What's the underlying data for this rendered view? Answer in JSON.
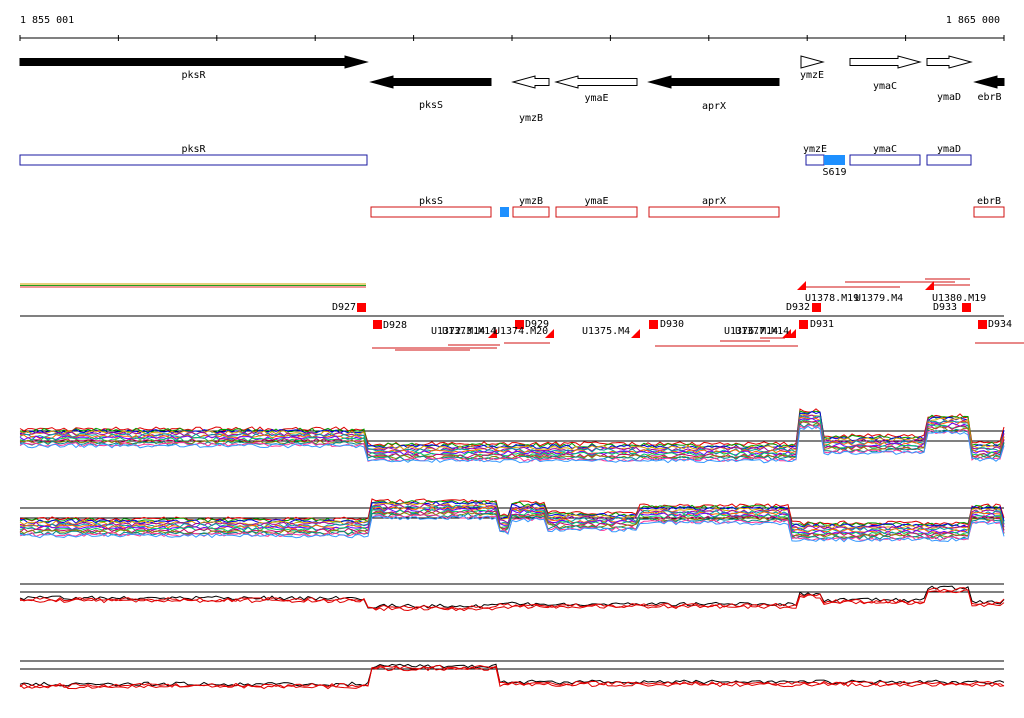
{
  "coords": {
    "start": "1 855 001",
    "end": "1 865 000"
  },
  "genes": [
    {
      "name": "pksR",
      "strand": "+",
      "fill": "black",
      "x1": 20,
      "x2": 367,
      "lab": "pksR"
    },
    {
      "name": "pksS",
      "strand": "-",
      "fill": "black",
      "x1": 371,
      "x2": 491,
      "lab": "pksS"
    },
    {
      "name": "ymzB",
      "strand": "-",
      "fill": "white",
      "x1": 513,
      "x2": 549,
      "lab": "ymzB"
    },
    {
      "name": "ymaE",
      "strand": "-",
      "fill": "white",
      "x1": 556,
      "x2": 637,
      "lab": "ymaE"
    },
    {
      "name": "aprX",
      "strand": "-",
      "fill": "black",
      "x1": 649,
      "x2": 779,
      "lab": "aprX"
    },
    {
      "name": "ymzE",
      "strand": "+",
      "fill": "white",
      "x1": 801,
      "x2": 823,
      "lab": "ymzE"
    },
    {
      "name": "ymaC",
      "strand": "+",
      "fill": "white",
      "x1": 850,
      "x2": 920,
      "lab": "ymaC"
    },
    {
      "name": "ymaD",
      "strand": "+",
      "fill": "white",
      "x1": 927,
      "x2": 971,
      "lab": "ymaD"
    },
    {
      "name": "ebrB",
      "strand": "-",
      "fill": "black",
      "x1": 975,
      "x2": 1004,
      "lab": "ebrB"
    }
  ],
  "features_forward": [
    {
      "label": "pksR",
      "x1": 20,
      "x2": 367
    },
    {
      "label": "ymzE",
      "x1": 806,
      "x2": 824
    },
    {
      "label": "ymaC",
      "x1": 850,
      "x2": 920
    },
    {
      "label": "ymaD",
      "x1": 927,
      "x2": 971
    }
  ],
  "features_reverse": [
    {
      "label": "pksS",
      "x1": 371,
      "x2": 491
    },
    {
      "label": "ymzB",
      "x1": 513,
      "x2": 549
    },
    {
      "label": "ymaE",
      "x1": 556,
      "x2": 637
    },
    {
      "label": "aprX",
      "x1": 649,
      "x2": 779
    },
    {
      "label": "ebrB",
      "x1": 974,
      "x2": 1004
    }
  ],
  "small_features": [
    {
      "label": "",
      "x1": 500,
      "x2": 509,
      "row": "reverse"
    },
    {
      "label": "S619",
      "x1": 824,
      "x2": 845,
      "row": "forward"
    }
  ],
  "tu_labels_top": [
    "D927",
    "D932",
    "U1378.M19",
    "U1379.M4",
    "U1380.M19",
    "D933"
  ],
  "tu_labels_bottom": [
    "D928",
    "U1372.M14",
    "U1373.M14",
    "U1374.M20",
    "D929",
    "U1375.M4",
    "D930",
    "U1376.M14",
    "U1377.M14",
    "D931",
    "D934"
  ],
  "colors": {
    "reverse_feature": "#d01010",
    "forward_feature": "#1a1aa0",
    "highlight": "#1e90ff",
    "tu_marker": "#ff0000"
  }
}
